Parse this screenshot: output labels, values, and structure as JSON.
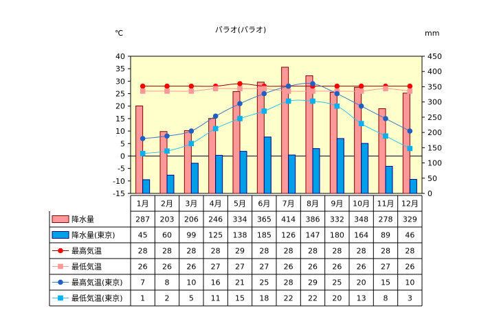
{
  "chart_data": {
    "type": "bar",
    "title": "パラオ(パラオ)",
    "left_axis_unit": "℃",
    "right_axis_unit": "mm",
    "left_axis": {
      "range": [
        -15,
        40
      ],
      "step": 5
    },
    "right_axis": {
      "range": [
        0,
        450
      ],
      "step": 50
    },
    "categories": [
      "1月",
      "2月",
      "3月",
      "4月",
      "5月",
      "6月",
      "7月",
      "8月",
      "9月",
      "10月",
      "11月",
      "12月"
    ],
    "series": [
      {
        "name": "降水量",
        "kind": "bar",
        "axis": "right",
        "color": "#ff9999",
        "border": "#800000",
        "values": [
          287,
          203,
          206,
          246,
          334,
          365,
          414,
          386,
          332,
          348,
          278,
          329
        ]
      },
      {
        "name": "降水量(東京)",
        "kind": "bar",
        "axis": "right",
        "color": "#00a0e9",
        "border": "#000080",
        "values": [
          45,
          60,
          99,
          125,
          138,
          185,
          126,
          147,
          180,
          164,
          89,
          46
        ]
      },
      {
        "name": "最高気温",
        "kind": "line",
        "axis": "left",
        "color": "#ff0000",
        "line_color": "#990000",
        "marker": "circle",
        "values": [
          28,
          28,
          28,
          28,
          29,
          28,
          28,
          28,
          28,
          28,
          28,
          28
        ]
      },
      {
        "name": "最低気温",
        "kind": "line",
        "axis": "left",
        "color": "#ff9999",
        "line_color": "#ff9999",
        "marker": "square",
        "values": [
          26,
          26,
          26,
          27,
          27,
          27,
          26,
          26,
          26,
          26,
          27,
          26
        ]
      },
      {
        "name": "最高気温(東京)",
        "kind": "line",
        "axis": "left",
        "color": "#1f5fbf",
        "line_color": "#3a78c8",
        "marker": "circle",
        "values": [
          7,
          8,
          10,
          16,
          21,
          25,
          28,
          29,
          25,
          20,
          15,
          10
        ]
      },
      {
        "name": "最低気温(東京)",
        "kind": "line",
        "axis": "left",
        "color": "#00b0f0",
        "line_color": "#33c0f0",
        "marker": "square",
        "values": [
          1,
          2,
          5,
          11,
          15,
          18,
          22,
          22,
          20,
          13,
          8,
          3
        ]
      }
    ],
    "plot_background": "#ffffcc",
    "grid": false,
    "legend": "data-table-below"
  }
}
